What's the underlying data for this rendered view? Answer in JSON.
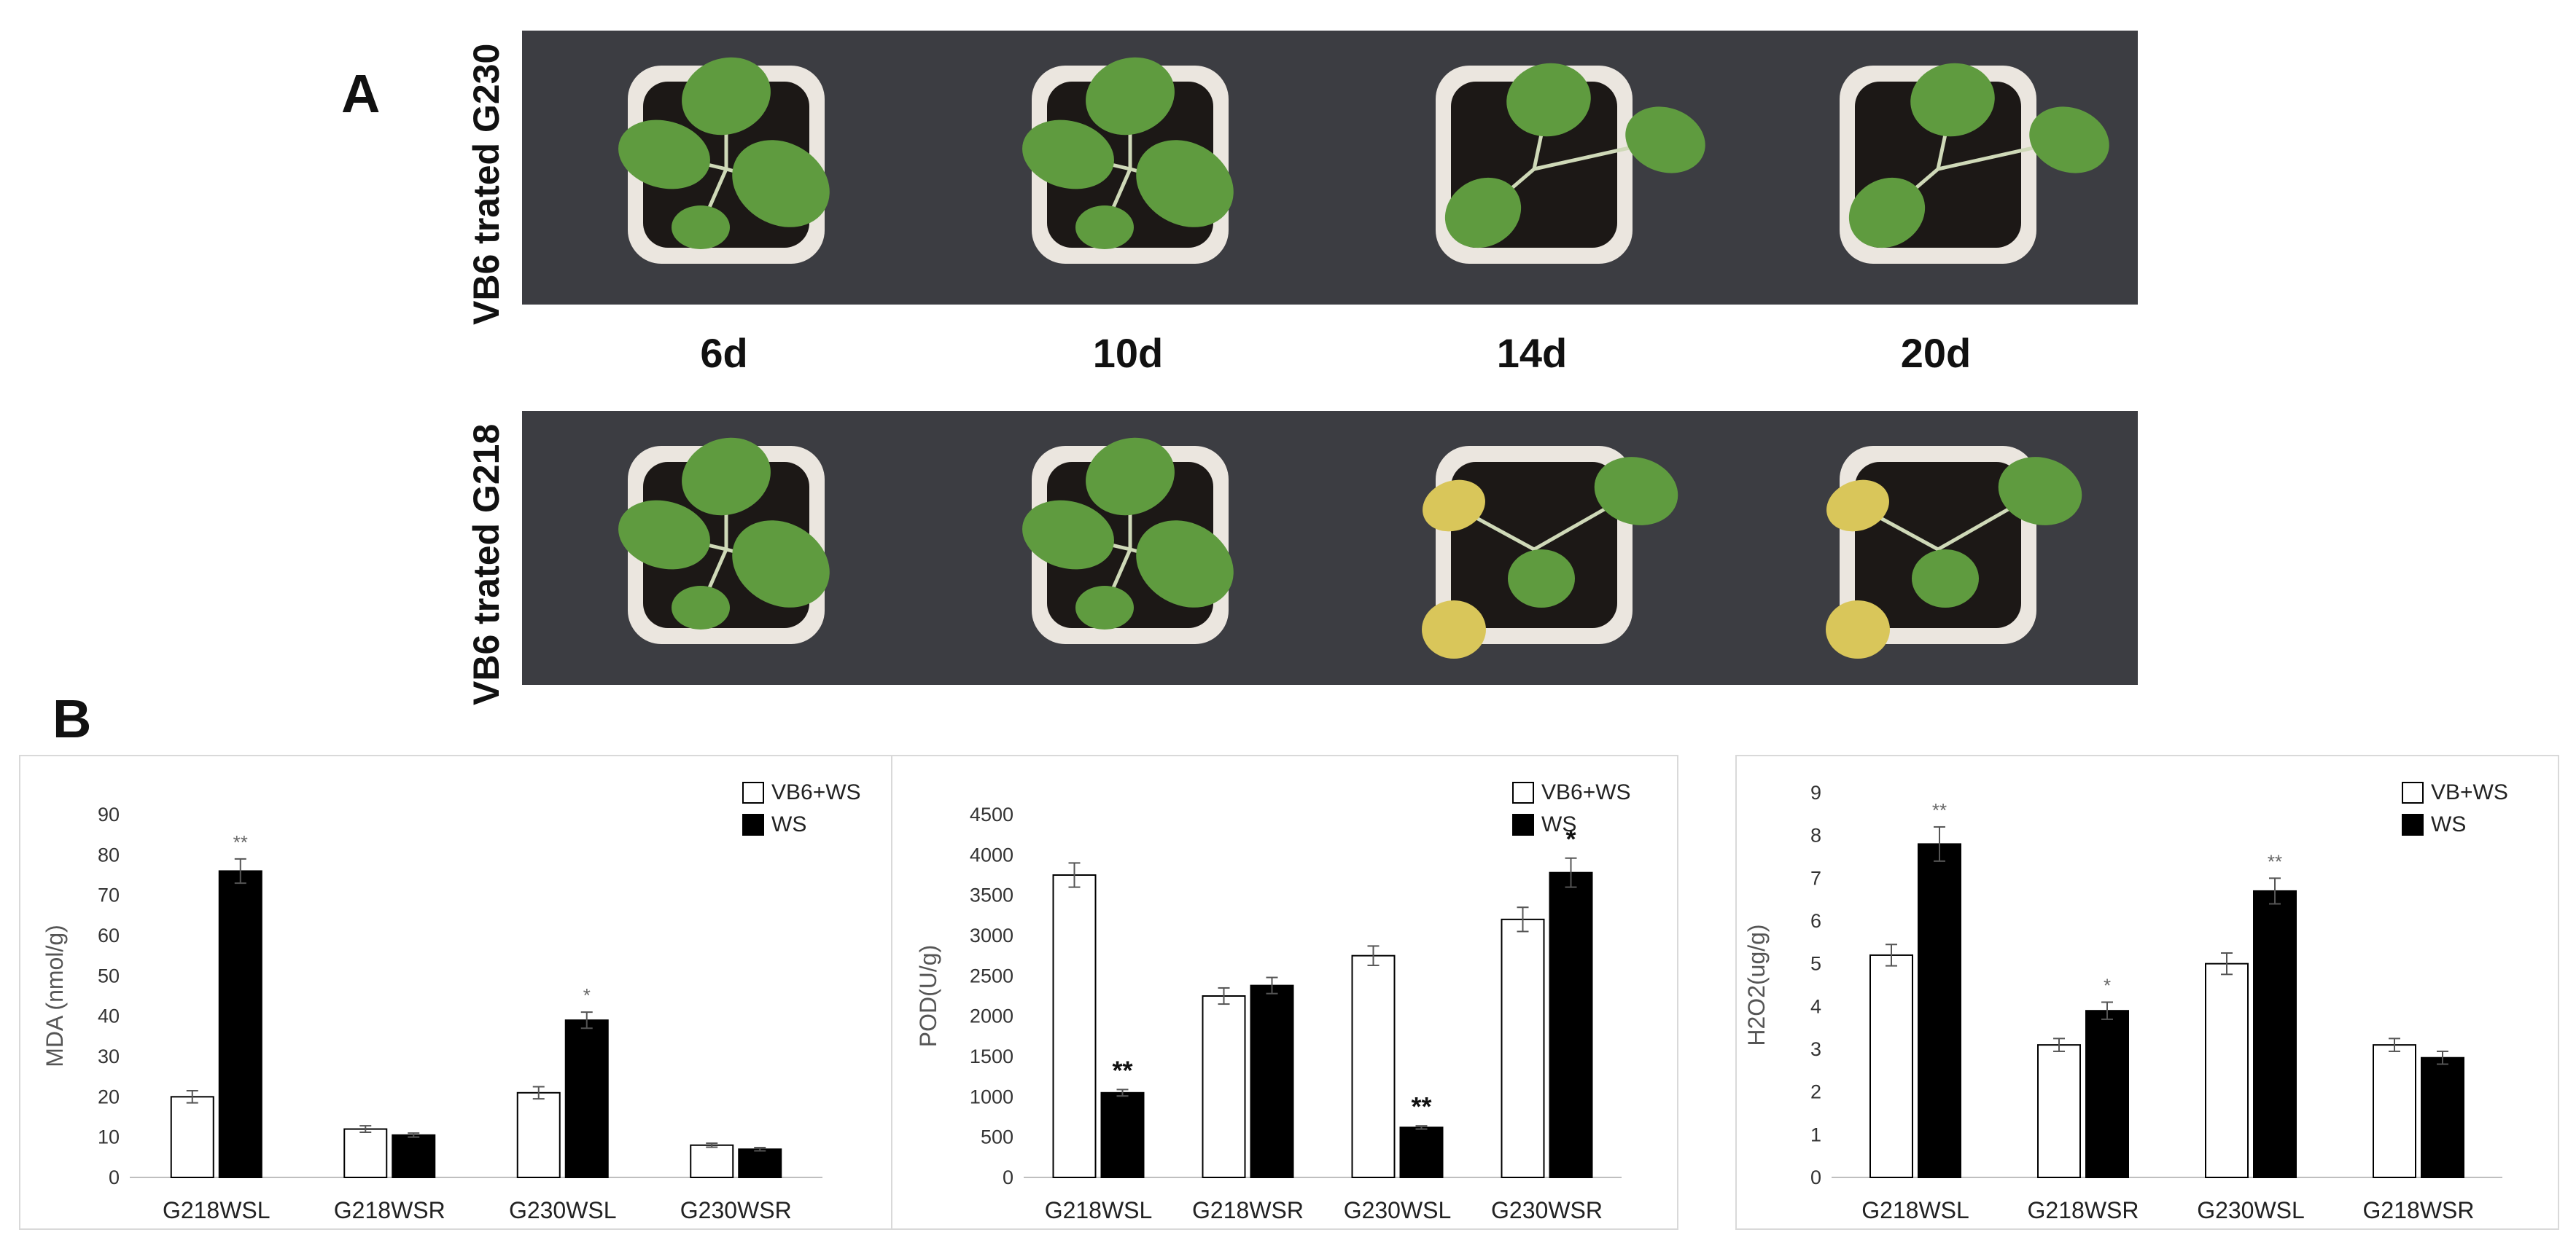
{
  "panel_a": {
    "letter": "A",
    "rows": [
      {
        "label": "VB6 trated G230"
      },
      {
        "label": "VB6 trated G218"
      }
    ],
    "days": [
      "6d",
      "10d",
      "14d",
      "20d"
    ]
  },
  "panel_b": {
    "letter": "B"
  },
  "colors": {
    "open": "#ffffff",
    "filled": "#000000",
    "photo_bg": "#3c3d42",
    "soil": "#1c1816",
    "leaf": "#5f9b3f",
    "yellow_leaf": "#d9c65a",
    "pot": "#ebe6df"
  },
  "chart_data": [
    {
      "type": "bar",
      "title": "",
      "ylabel": "MDA (nmol/g)",
      "ylim": [
        0,
        90
      ],
      "yticks": [
        0,
        10,
        20,
        30,
        40,
        50,
        60,
        70,
        80,
        90
      ],
      "categories": [
        "G218WSL",
        "G218WSR",
        "G230WSL",
        "G230WSR"
      ],
      "series": [
        {
          "name": "VB6+WS",
          "fill": "open",
          "values": [
            20,
            12,
            21,
            8
          ],
          "errors": [
            1.5,
            0.8,
            1.5,
            0.5
          ]
        },
        {
          "name": "WS",
          "fill": "filled",
          "values": [
            76,
            10.5,
            39,
            7
          ],
          "errors": [
            3,
            0.5,
            2,
            0.4
          ]
        }
      ],
      "annotations": [
        {
          "category": 0,
          "series": 1,
          "text": "**"
        },
        {
          "category": 2,
          "series": 1,
          "text": "*"
        }
      ],
      "legend": "top-right"
    },
    {
      "type": "bar",
      "title": "",
      "ylabel": "POD(U/g)",
      "ylim": [
        0,
        4500
      ],
      "yticks": [
        0,
        500,
        1000,
        1500,
        2000,
        2500,
        3000,
        3500,
        4000,
        4500
      ],
      "categories": [
        "G218WSL",
        "G218WSR",
        "G230WSL",
        "G230WSR"
      ],
      "series": [
        {
          "name": "VB6+WS",
          "fill": "open",
          "values": [
            3750,
            2250,
            2750,
            3200
          ],
          "errors": [
            150,
            100,
            120,
            150
          ]
        },
        {
          "name": "WS",
          "fill": "filled",
          "values": [
            1050,
            2380,
            620,
            3780
          ],
          "errors": [
            40,
            100,
            20,
            180
          ]
        }
      ],
      "annotations": [
        {
          "category": 0,
          "series": 1,
          "text": "**"
        },
        {
          "category": 2,
          "series": 1,
          "text": "**"
        },
        {
          "category": 3,
          "series": 1,
          "text": "*"
        }
      ],
      "legend": "top-right"
    },
    {
      "type": "bar",
      "title": "",
      "ylabel": "H2O2(ug/g)",
      "ylim": [
        0,
        9
      ],
      "yticks": [
        0,
        1,
        2,
        3,
        4,
        5,
        6,
        7,
        8,
        9
      ],
      "categories": [
        "G218WSL",
        "G218WSR",
        "G230WSL",
        "G218WSR"
      ],
      "series": [
        {
          "name": "VB+WS",
          "fill": "open",
          "values": [
            5.2,
            3.1,
            5,
            3.1
          ],
          "errors": [
            0.25,
            0.15,
            0.25,
            0.15
          ]
        },
        {
          "name": "WS",
          "fill": "filled",
          "values": [
            7.8,
            3.9,
            6.7,
            2.8
          ],
          "errors": [
            0.4,
            0.2,
            0.3,
            0.15
          ]
        }
      ],
      "annotations": [
        {
          "category": 0,
          "series": 1,
          "text": "**"
        },
        {
          "category": 1,
          "series": 1,
          "text": "*"
        },
        {
          "category": 2,
          "series": 1,
          "text": "**"
        }
      ],
      "legend": "top-right"
    }
  ]
}
